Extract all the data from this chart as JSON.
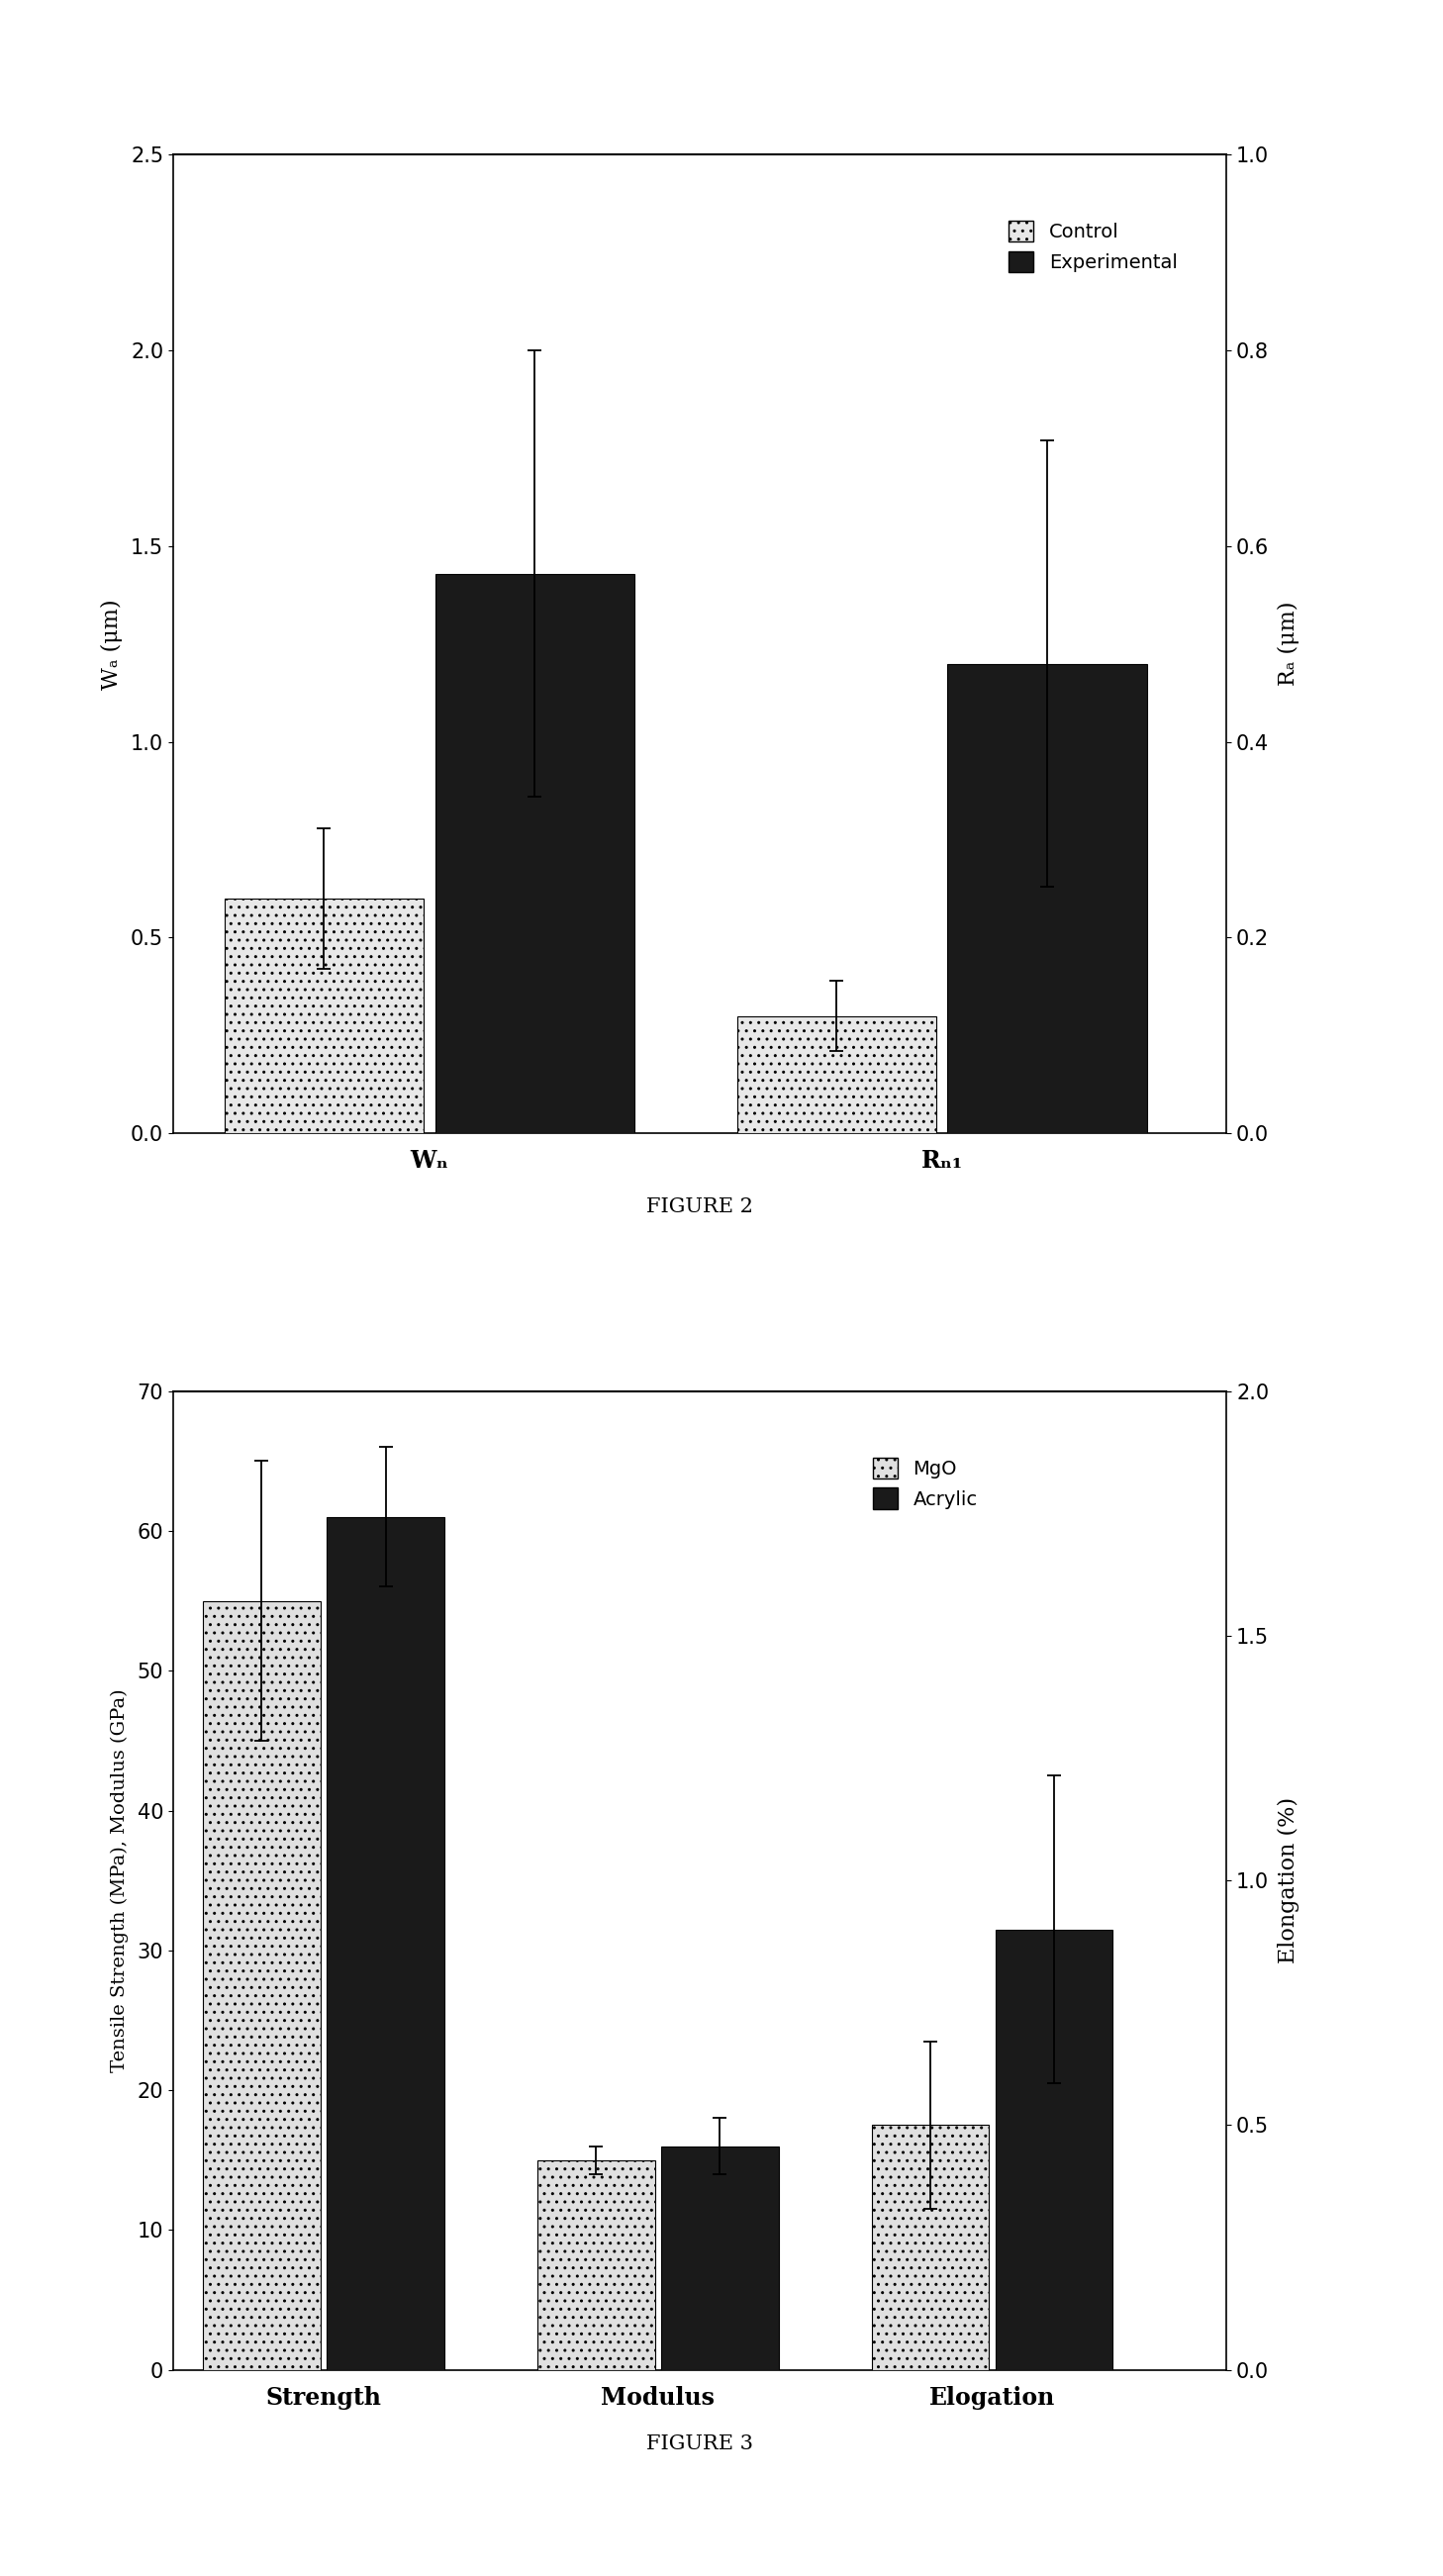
{
  "fig2": {
    "title": "FIGURE 2",
    "x_positions": [
      1.0,
      2.8
    ],
    "bar_width": 0.7,
    "control_values": [
      0.6,
      0.3
    ],
    "experimental_values": [
      1.43,
      1.2
    ],
    "control_errors": [
      0.18,
      0.09
    ],
    "experimental_errors": [
      0.57,
      0.57
    ],
    "ylabel_left": "Wₐ (μm)",
    "ylabel_right": "Rₐ (μm)",
    "ylim_left": [
      0,
      2.5
    ],
    "ylim_right": [
      0,
      1.0
    ],
    "yticks_left": [
      0,
      0.5,
      1.0,
      1.5,
      2.0,
      2.5
    ],
    "yticks_right": [
      0,
      0.2,
      0.4,
      0.6,
      0.8,
      1.0
    ],
    "legend_labels": [
      "Control",
      "Experimental"
    ],
    "control_color": "#e8e8e8",
    "control_hatch": "..",
    "experimental_color": "#1a1a1a",
    "xtick_labels": [
      "Wₙ",
      "Rₙ₁"
    ],
    "xlim": [
      0.1,
      3.8
    ],
    "bg_color": "#ffffff"
  },
  "fig3": {
    "title": "FIGURE 3",
    "x_positions": [
      1.0,
      3.0,
      5.0
    ],
    "bar_width": 0.7,
    "mgo_values": [
      55,
      15,
      17.5
    ],
    "acrylic_values": [
      61,
      16,
      31.5
    ],
    "mgo_errors": [
      10,
      1.0,
      6
    ],
    "acrylic_errors": [
      5,
      2.0,
      11
    ],
    "ylabel_left": "Tensile Strength (MPa), Modulus (GPa)",
    "ylabel_right": "Elongation (%)",
    "ylim_left": [
      0,
      70
    ],
    "ylim_right": [
      0,
      2.0
    ],
    "yticks_left": [
      0,
      10,
      20,
      30,
      40,
      50,
      60,
      70
    ],
    "yticks_right": [
      0,
      0.5,
      1.0,
      1.5,
      2.0
    ],
    "legend_labels": [
      "MgO",
      "Acrylic"
    ],
    "mgo_color": "#e0e0e0",
    "mgo_hatch": "..",
    "acrylic_color": "#1a1a1a",
    "xtick_labels": [
      "Strength",
      "Modulus",
      "Elogation"
    ],
    "xlim": [
      0.1,
      6.4
    ],
    "bg_color": "#ffffff"
  }
}
